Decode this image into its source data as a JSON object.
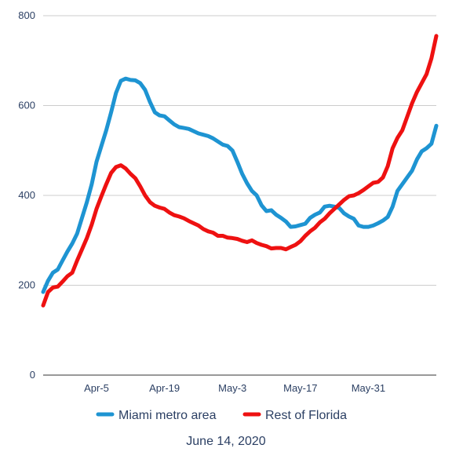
{
  "chart_data": {
    "type": "line",
    "title": "",
    "xlabel": "",
    "ylabel": "",
    "caption": "June 14, 2020",
    "x_start": "2020-03-25",
    "x_end": "2020-06-14",
    "x_ticks": [
      {
        "date": "2020-04-05",
        "label": "Apr-5"
      },
      {
        "date": "2020-04-19",
        "label": "Apr-19"
      },
      {
        "date": "2020-05-03",
        "label": "May-3"
      },
      {
        "date": "2020-05-17",
        "label": "May-17"
      },
      {
        "date": "2020-05-31",
        "label": "May-31"
      }
    ],
    "ylim": [
      0,
      800
    ],
    "y_ticks": [
      0,
      200,
      400,
      600,
      800
    ],
    "grid": true,
    "legend_position": "bottom",
    "series": [
      {
        "name": "Miami metro area",
        "color": "#1e94d2",
        "points": [
          [
            "2020-03-25",
            185
          ],
          [
            "2020-03-26",
            210
          ],
          [
            "2020-03-27",
            228
          ],
          [
            "2020-03-28",
            235
          ],
          [
            "2020-03-29",
            255
          ],
          [
            "2020-03-30",
            275
          ],
          [
            "2020-03-31",
            293
          ],
          [
            "2020-04-01",
            315
          ],
          [
            "2020-04-02",
            350
          ],
          [
            "2020-04-03",
            385
          ],
          [
            "2020-04-04",
            425
          ],
          [
            "2020-04-05",
            475
          ],
          [
            "2020-04-06",
            510
          ],
          [
            "2020-04-07",
            545
          ],
          [
            "2020-04-08",
            585
          ],
          [
            "2020-04-09",
            628
          ],
          [
            "2020-04-10",
            655
          ],
          [
            "2020-04-11",
            660
          ],
          [
            "2020-04-12",
            657
          ],
          [
            "2020-04-13",
            656
          ],
          [
            "2020-04-14",
            650
          ],
          [
            "2020-04-15",
            635
          ],
          [
            "2020-04-16",
            608
          ],
          [
            "2020-04-17",
            585
          ],
          [
            "2020-04-18",
            578
          ],
          [
            "2020-04-19",
            576
          ],
          [
            "2020-04-20",
            567
          ],
          [
            "2020-04-21",
            558
          ],
          [
            "2020-04-22",
            552
          ],
          [
            "2020-04-23",
            550
          ],
          [
            "2020-04-24",
            548
          ],
          [
            "2020-04-25",
            543
          ],
          [
            "2020-04-26",
            538
          ],
          [
            "2020-04-27",
            535
          ],
          [
            "2020-04-28",
            532
          ],
          [
            "2020-04-29",
            527
          ],
          [
            "2020-04-30",
            520
          ],
          [
            "2020-05-01",
            513
          ],
          [
            "2020-05-02",
            510
          ],
          [
            "2020-05-03",
            500
          ],
          [
            "2020-05-04",
            475
          ],
          [
            "2020-05-05",
            448
          ],
          [
            "2020-05-06",
            427
          ],
          [
            "2020-05-07",
            410
          ],
          [
            "2020-05-08",
            400
          ],
          [
            "2020-05-09",
            378
          ],
          [
            "2020-05-10",
            365
          ],
          [
            "2020-05-11",
            367
          ],
          [
            "2020-05-12",
            357
          ],
          [
            "2020-05-13",
            350
          ],
          [
            "2020-05-14",
            342
          ],
          [
            "2020-05-15",
            330
          ],
          [
            "2020-05-16",
            331
          ],
          [
            "2020-05-17",
            334
          ],
          [
            "2020-05-18",
            337
          ],
          [
            "2020-05-19",
            350
          ],
          [
            "2020-05-20",
            357
          ],
          [
            "2020-05-21",
            362
          ],
          [
            "2020-05-22",
            375
          ],
          [
            "2020-05-23",
            377
          ],
          [
            "2020-05-24",
            375
          ],
          [
            "2020-05-25",
            372
          ],
          [
            "2020-05-26",
            360
          ],
          [
            "2020-05-27",
            353
          ],
          [
            "2020-05-28",
            348
          ],
          [
            "2020-05-29",
            333
          ],
          [
            "2020-05-30",
            330
          ],
          [
            "2020-05-31",
            330
          ],
          [
            "2020-06-01",
            333
          ],
          [
            "2020-06-02",
            338
          ],
          [
            "2020-06-03",
            344
          ],
          [
            "2020-06-04",
            352
          ],
          [
            "2020-06-05",
            375
          ],
          [
            "2020-06-06",
            410
          ],
          [
            "2020-06-07",
            425
          ],
          [
            "2020-06-08",
            440
          ],
          [
            "2020-06-09",
            455
          ],
          [
            "2020-06-10",
            480
          ],
          [
            "2020-06-11",
            498
          ],
          [
            "2020-06-12",
            505
          ],
          [
            "2020-06-13",
            515
          ],
          [
            "2020-06-14",
            555
          ]
        ]
      },
      {
        "name": "Rest of Florida",
        "color": "#ee1111",
        "points": [
          [
            "2020-03-25",
            155
          ],
          [
            "2020-03-26",
            185
          ],
          [
            "2020-03-27",
            195
          ],
          [
            "2020-03-28",
            197
          ],
          [
            "2020-03-29",
            208
          ],
          [
            "2020-03-30",
            220
          ],
          [
            "2020-03-31",
            228
          ],
          [
            "2020-04-01",
            255
          ],
          [
            "2020-04-02",
            280
          ],
          [
            "2020-04-03",
            305
          ],
          [
            "2020-04-04",
            335
          ],
          [
            "2020-04-05",
            370
          ],
          [
            "2020-04-06",
            398
          ],
          [
            "2020-04-07",
            425
          ],
          [
            "2020-04-08",
            450
          ],
          [
            "2020-04-09",
            463
          ],
          [
            "2020-04-10",
            467
          ],
          [
            "2020-04-11",
            460
          ],
          [
            "2020-04-12",
            448
          ],
          [
            "2020-04-13",
            438
          ],
          [
            "2020-04-14",
            420
          ],
          [
            "2020-04-15",
            400
          ],
          [
            "2020-04-16",
            385
          ],
          [
            "2020-04-17",
            377
          ],
          [
            "2020-04-18",
            373
          ],
          [
            "2020-04-19",
            370
          ],
          [
            "2020-04-20",
            362
          ],
          [
            "2020-04-21",
            356
          ],
          [
            "2020-04-22",
            353
          ],
          [
            "2020-04-23",
            349
          ],
          [
            "2020-04-24",
            343
          ],
          [
            "2020-04-25",
            338
          ],
          [
            "2020-04-26",
            333
          ],
          [
            "2020-04-27",
            325
          ],
          [
            "2020-04-28",
            320
          ],
          [
            "2020-04-29",
            317
          ],
          [
            "2020-04-30",
            310
          ],
          [
            "2020-05-01",
            310
          ],
          [
            "2020-05-02",
            306
          ],
          [
            "2020-05-03",
            305
          ],
          [
            "2020-05-04",
            303
          ],
          [
            "2020-05-05",
            299
          ],
          [
            "2020-05-06",
            296
          ],
          [
            "2020-05-07",
            300
          ],
          [
            "2020-05-08",
            294
          ],
          [
            "2020-05-09",
            290
          ],
          [
            "2020-05-10",
            287
          ],
          [
            "2020-05-11",
            282
          ],
          [
            "2020-05-12",
            283
          ],
          [
            "2020-05-13",
            283
          ],
          [
            "2020-05-14",
            280
          ],
          [
            "2020-05-15",
            285
          ],
          [
            "2020-05-16",
            290
          ],
          [
            "2020-05-17",
            298
          ],
          [
            "2020-05-18",
            310
          ],
          [
            "2020-05-19",
            320
          ],
          [
            "2020-05-20",
            328
          ],
          [
            "2020-05-21",
            340
          ],
          [
            "2020-05-22",
            348
          ],
          [
            "2020-05-23",
            360
          ],
          [
            "2020-05-24",
            370
          ],
          [
            "2020-05-25",
            380
          ],
          [
            "2020-05-26",
            390
          ],
          [
            "2020-05-27",
            398
          ],
          [
            "2020-05-28",
            400
          ],
          [
            "2020-05-29",
            405
          ],
          [
            "2020-05-30",
            412
          ],
          [
            "2020-05-31",
            420
          ],
          [
            "2020-06-01",
            428
          ],
          [
            "2020-06-02",
            430
          ],
          [
            "2020-06-03",
            440
          ],
          [
            "2020-06-04",
            465
          ],
          [
            "2020-06-05",
            505
          ],
          [
            "2020-06-06",
            528
          ],
          [
            "2020-06-07",
            545
          ],
          [
            "2020-06-08",
            575
          ],
          [
            "2020-06-09",
            605
          ],
          [
            "2020-06-10",
            630
          ],
          [
            "2020-06-11",
            650
          ],
          [
            "2020-06-12",
            670
          ],
          [
            "2020-06-13",
            705
          ],
          [
            "2020-06-14",
            755
          ]
        ]
      }
    ]
  }
}
